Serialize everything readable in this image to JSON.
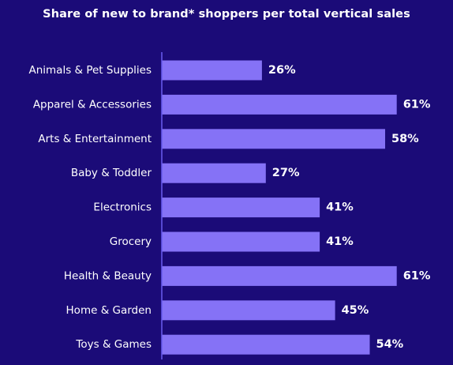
{
  "colors": {
    "background": "#1b0b78",
    "bar": "#8572f6",
    "axis": "#6a5cf0",
    "text": "#ffffff"
  },
  "chart_data": {
    "type": "bar",
    "orientation": "horizontal",
    "title": "Share of new to brand* shoppers per total vertical sales",
    "xlabel": "",
    "ylabel": "",
    "xlim": [
      0,
      62
    ],
    "grid": false,
    "legend": "none",
    "value_suffix": "%",
    "categories": [
      "Animals & Pet Supplies",
      "Apparel & Accessories",
      "Arts & Entertainment",
      "Baby & Toddler",
      "Electronics",
      "Grocery",
      "Health & Beauty",
      "Home & Garden",
      "Toys & Games"
    ],
    "values": [
      26,
      61,
      58,
      27,
      41,
      41,
      61,
      45,
      54
    ],
    "data_labels": [
      "26%",
      "61%",
      "58%",
      "27%",
      "41%",
      "41%",
      "61%",
      "45%",
      "54%"
    ]
  }
}
